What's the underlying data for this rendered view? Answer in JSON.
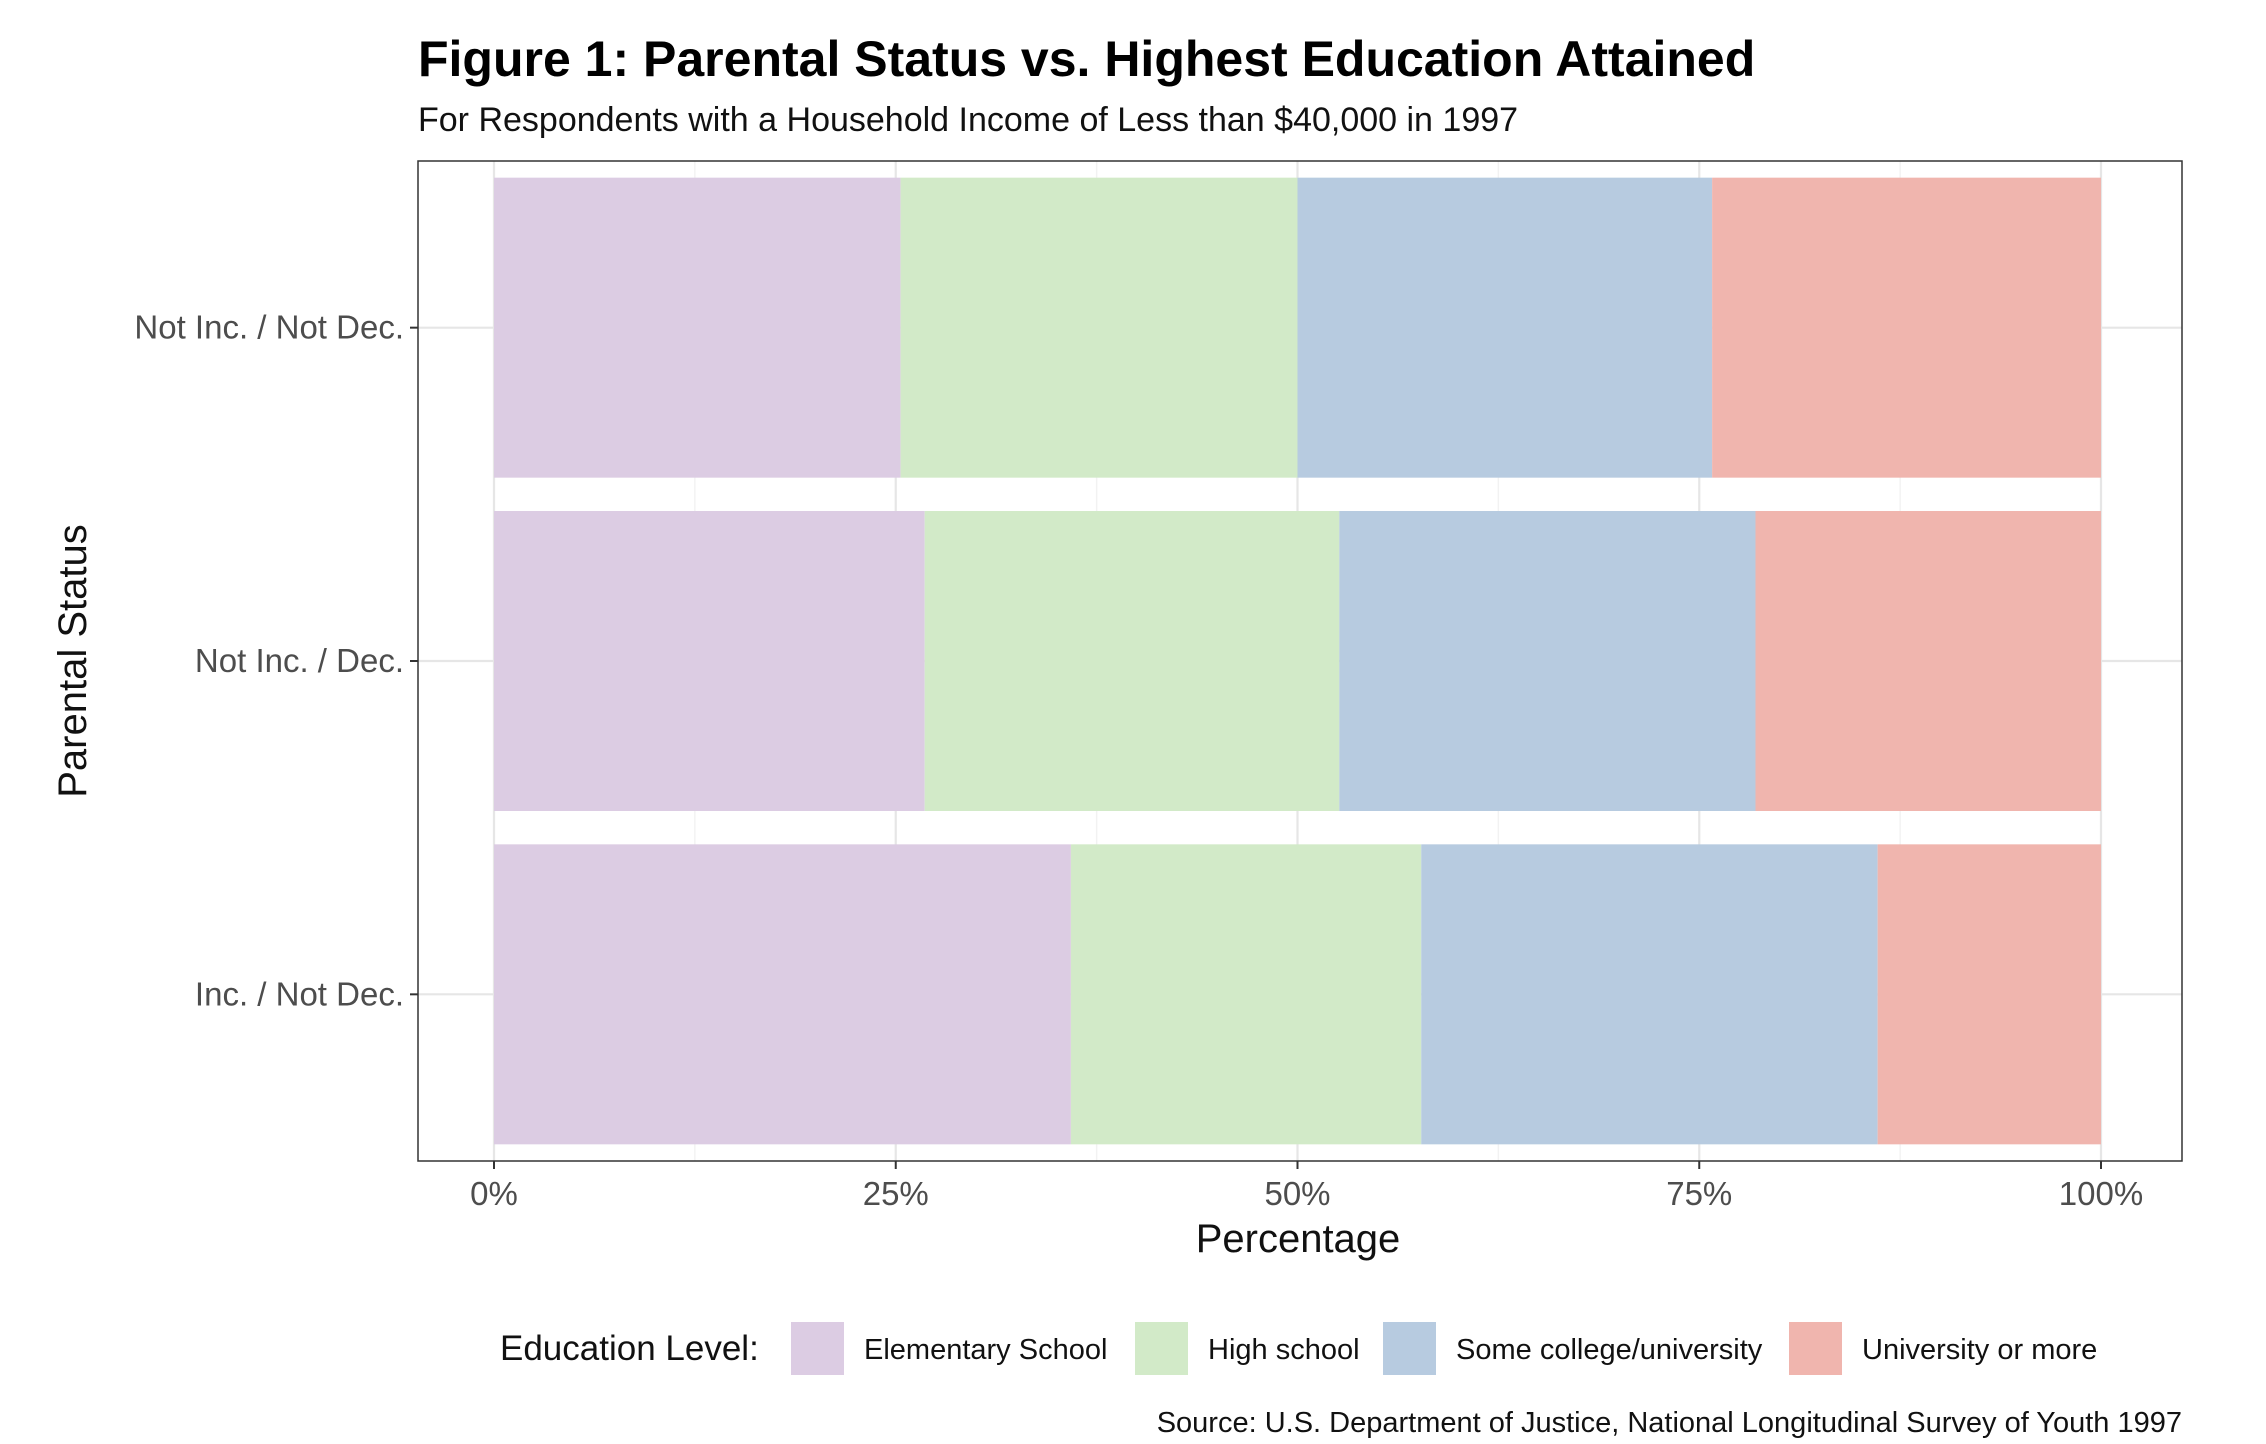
{
  "chart_data": {
    "type": "bar",
    "orientation": "horizontal",
    "stacked": true,
    "title": "Figure 1: Parental Status vs. Highest Education Attained",
    "subtitle": "For Respondents with a Household Income of Less than $40,000 in 1997",
    "xlabel": "Percentage",
    "ylabel": "Parental Status",
    "categories": [
      "Not Inc. / Not Dec.",
      "Not Inc. / Dec.",
      "Inc. / Not Dec."
    ],
    "x_ticks": [
      "0%",
      "25%",
      "50%",
      "75%",
      "100%"
    ],
    "xlim": [
      0,
      100
    ],
    "grid": true,
    "legend_title": "Education Level:",
    "legend_position": "bottom",
    "caption": "Source: U.S. Department of Justice, National Longitudinal Survey of Youth 1997",
    "series": [
      {
        "name": "Elementary School",
        "color": "#dccce3",
        "values": [
          25.3,
          26.8,
          35.9
        ]
      },
      {
        "name": "High school",
        "color": "#d2eac8",
        "values": [
          24.7,
          25.8,
          21.8
        ]
      },
      {
        "name": "Some college/university",
        "color": "#b7cbe0",
        "values": [
          25.8,
          25.9,
          28.4
        ]
      },
      {
        "name": "University or more",
        "color": "#f0b5ae",
        "values": [
          24.2,
          21.5,
          13.9
        ]
      }
    ]
  }
}
